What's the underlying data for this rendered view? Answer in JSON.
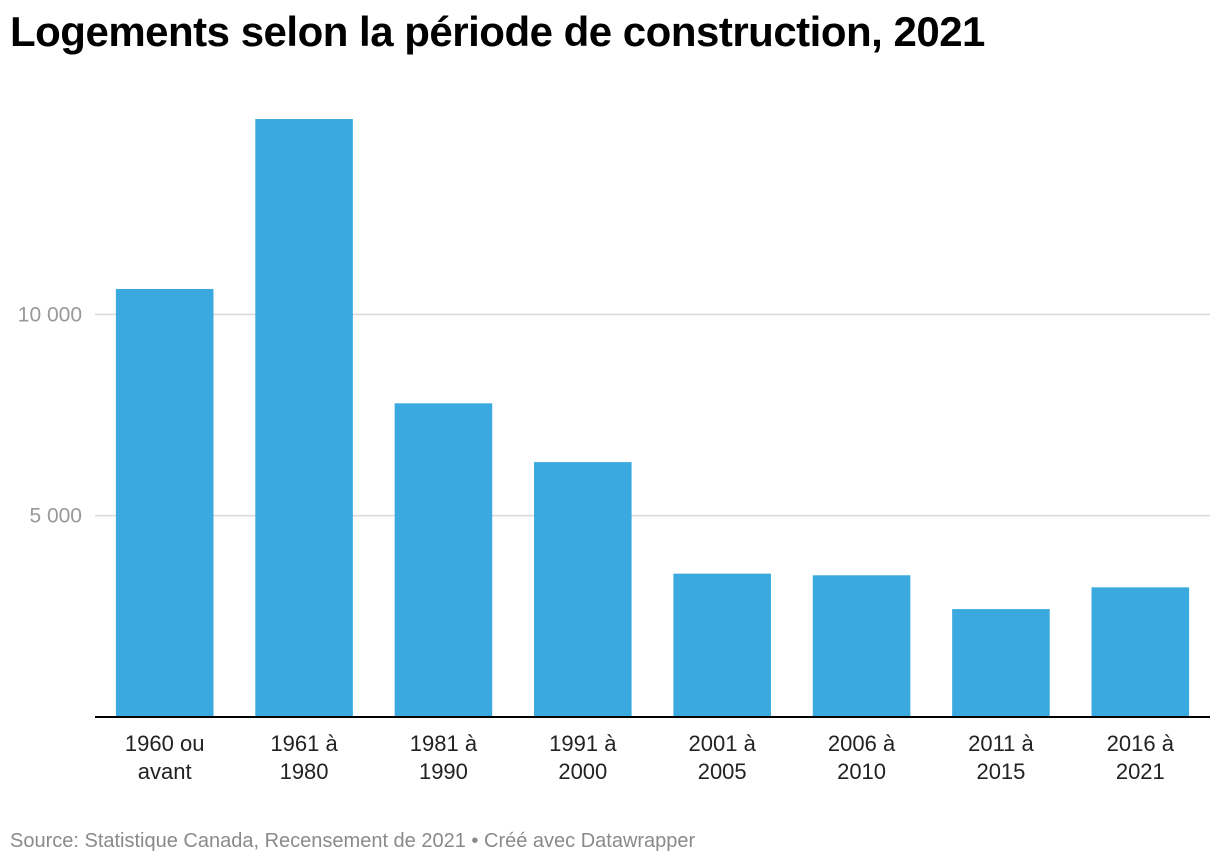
{
  "title": "Logements selon la période de construction, 2021",
  "footer": {
    "source": "Source: Statistique Canada, Recensement de 2021",
    "separator": "•",
    "credit": "Créé avec Datawrapper"
  },
  "colors": {
    "bar": "#3aa9df",
    "grid": "#d9d9d9",
    "axis": "#000000",
    "tick_text": "#999999",
    "label_text": "#222222"
  },
  "chart_data": {
    "type": "bar",
    "categories": [
      [
        "1960 ou",
        "avant"
      ],
      [
        "1961 à",
        "1980"
      ],
      [
        "1981 à",
        "1990"
      ],
      [
        "1991 à",
        "2000"
      ],
      [
        "2001 à",
        "2005"
      ],
      [
        "2006 à",
        "2010"
      ],
      [
        "2011 à",
        "2015"
      ],
      [
        "2016 à",
        "2021"
      ]
    ],
    "values": [
      10630,
      14850,
      7790,
      6330,
      3560,
      3520,
      2680,
      3220
    ],
    "ylim": [
      0,
      15000
    ],
    "yticks": [
      {
        "value": 5000,
        "label": "5 000"
      },
      {
        "value": 10000,
        "label": "10 000"
      }
    ],
    "grid": true,
    "xlabel": "",
    "ylabel": ""
  }
}
